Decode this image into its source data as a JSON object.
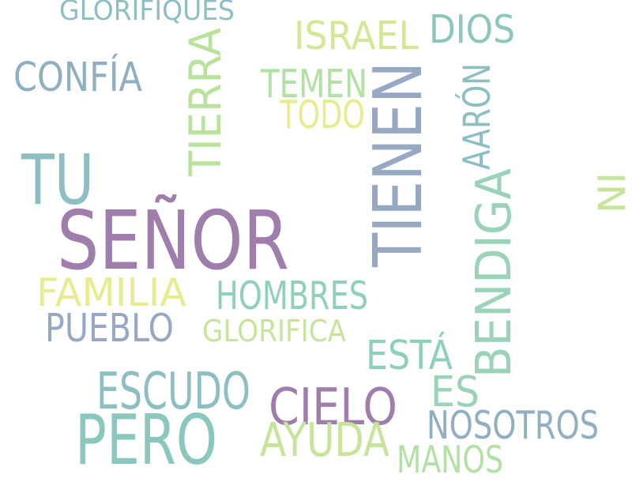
{
  "palette": {
    "teal": "#8ac7bd",
    "slate": "#90afc1",
    "blue_grey": "#97a8c3",
    "purple": "#a07eab",
    "mint": "#9ad3b8",
    "lime": "#c6e59a",
    "yellow": "#e7ec8f",
    "grey_teal": "#8dbfc2"
  },
  "words": [
    {
      "id": "senor",
      "text": "SEÑOR",
      "orientation": "horizontal",
      "color": "#a07eab"
    },
    {
      "id": "tienen",
      "text": "TIENEN",
      "orientation": "vertical",
      "color": "#97a8c3"
    },
    {
      "id": "pero",
      "text": "PERO",
      "orientation": "horizontal",
      "color": "#8ac7bd"
    },
    {
      "id": "tu",
      "text": "TU",
      "orientation": "horizontal",
      "color": "#8dbfc2"
    },
    {
      "id": "bendiga",
      "text": "BENDIGA",
      "orientation": "vertical",
      "color": "#9ad3b8"
    },
    {
      "id": "tierra",
      "text": "TIERRA",
      "orientation": "vertical",
      "color": "#b9e29b"
    },
    {
      "id": "escudo",
      "text": "ESCUDO",
      "orientation": "horizontal",
      "color": "#8dbfc2"
    },
    {
      "id": "cielo",
      "text": "CIELO",
      "orientation": "horizontal",
      "color": "#a07eab"
    },
    {
      "id": "ayuda",
      "text": "AYUDA",
      "orientation": "horizontal",
      "color": "#c6e59a"
    },
    {
      "id": "hombres",
      "text": "HOMBRES",
      "orientation": "horizontal",
      "color": "#8ed0bb"
    },
    {
      "id": "familia",
      "text": "FAMILIA",
      "orientation": "horizontal",
      "color": "#e7ec8f"
    },
    {
      "id": "pueblo",
      "text": "PUEBLO",
      "orientation": "horizontal",
      "color": "#97a8c3"
    },
    {
      "id": "confia",
      "text": "CONFÍA",
      "orientation": "horizontal",
      "color": "#90afc1"
    },
    {
      "id": "israel",
      "text": "ISRAEL",
      "orientation": "horizontal",
      "color": "#d2e892"
    },
    {
      "id": "dios",
      "text": "DIOS",
      "orientation": "horizontal",
      "color": "#8ac7bd"
    },
    {
      "id": "temen",
      "text": "TEMEN",
      "orientation": "horizontal",
      "color": "#b2e0a5"
    },
    {
      "id": "todo",
      "text": "TODO",
      "orientation": "horizontal",
      "color": "#e7ec8f"
    },
    {
      "id": "aaron",
      "text": "AARÓN",
      "orientation": "vertical",
      "color": "#8dbfc2"
    },
    {
      "id": "nosotros",
      "text": "NOSOTROS",
      "orientation": "horizontal",
      "color": "#90afc1"
    },
    {
      "id": "esta",
      "text": "ESTÁ",
      "orientation": "horizontal",
      "color": "#8ed0bb"
    },
    {
      "id": "es",
      "text": "ES",
      "orientation": "horizontal",
      "color": "#9ad3b8"
    },
    {
      "id": "manos",
      "text": "MANOS",
      "orientation": "horizontal",
      "color": "#b2e0a5"
    },
    {
      "id": "glorifica",
      "text": "GLORIFICA",
      "orientation": "horizontal",
      "color": "#c6e59a"
    },
    {
      "id": "glorifiques",
      "text": "GLORIFIQUES",
      "orientation": "horizontal",
      "color": "#8dbfc2"
    },
    {
      "id": "ni",
      "text": "NI",
      "orientation": "vertical",
      "color": "#c6e59a"
    }
  ]
}
